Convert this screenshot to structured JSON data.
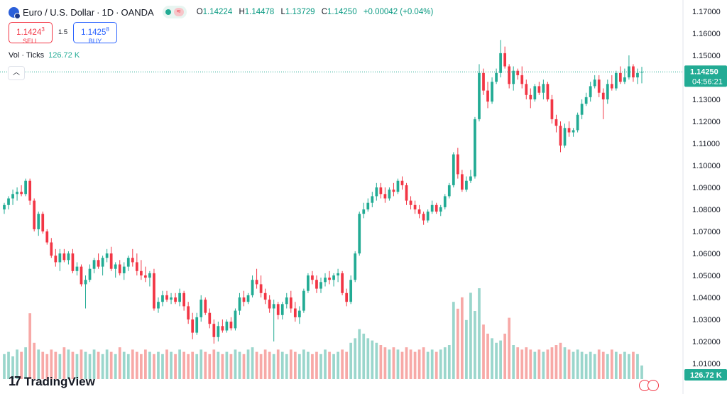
{
  "header": {
    "symbol_name": "Euro / U.S. Dollar",
    "interval": "1D",
    "exchange": "OANDA",
    "ohlc": [
      {
        "k": "O",
        "v": "1.14224"
      },
      {
        "k": "H",
        "v": "1.14478"
      },
      {
        "k": "L",
        "v": "1.13729"
      },
      {
        "k": "C",
        "v": "1.14250"
      }
    ],
    "change": "+0.00042 (+0.04%)"
  },
  "trade": {
    "sell_price": "1.1424",
    "sell_price_small": "3",
    "sell_label": "SELL",
    "spread": "1.5",
    "buy_price": "1.1425",
    "buy_price_small": "8",
    "buy_label": "BUY"
  },
  "volume": {
    "label": "Vol · Ticks",
    "value": "126.72 K"
  },
  "collapse_icon": "chevron-up-icon",
  "logo": {
    "text": "TradingView",
    "icon": "tradingview-logo-icon"
  },
  "colors": {
    "up": "#22ab94",
    "down": "#f23645",
    "vol_up": "#9ad6cc",
    "vol_down": "#f7a9a7",
    "axis_text": "#131722",
    "price_tag": "#22ab94"
  },
  "chart_data": {
    "type": "candlestick",
    "ylim": [
      1.01,
      1.17
    ],
    "y_ticks": [
      "1.17000",
      "1.16000",
      "1.15000",
      "1.14000",
      "1.13000",
      "1.12000",
      "1.11000",
      "1.10000",
      "1.09000",
      "1.08000",
      "1.07000",
      "1.06000",
      "1.05000",
      "1.04000",
      "1.03000",
      "1.02000",
      "1.01000"
    ],
    "last_price": "1.14250",
    "countdown": "04:56:21",
    "volume_last": "126.72 K",
    "candles": [
      {
        "o": 1.08,
        "h": 1.083,
        "l": 1.078,
        "c": 1.082,
        "v": 11
      },
      {
        "o": 1.082,
        "h": 1.086,
        "l": 1.08,
        "c": 1.085,
        "v": 12
      },
      {
        "o": 1.085,
        "h": 1.089,
        "l": 1.082,
        "c": 1.087,
        "v": 10
      },
      {
        "o": 1.087,
        "h": 1.09,
        "l": 1.084,
        "c": 1.088,
        "v": 13
      },
      {
        "o": 1.088,
        "h": 1.091,
        "l": 1.086,
        "c": 1.087,
        "v": 12
      },
      {
        "o": 1.087,
        "h": 1.094,
        "l": 1.086,
        "c": 1.093,
        "v": 14
      },
      {
        "o": 1.093,
        "h": 1.094,
        "l": 1.082,
        "c": 1.084,
        "v": 29
      },
      {
        "o": 1.084,
        "h": 1.085,
        "l": 1.07,
        "c": 1.071,
        "v": 16
      },
      {
        "o": 1.071,
        "h": 1.079,
        "l": 1.068,
        "c": 1.078,
        "v": 13
      },
      {
        "o": 1.078,
        "h": 1.079,
        "l": 1.069,
        "c": 1.07,
        "v": 12
      },
      {
        "o": 1.07,
        "h": 1.071,
        "l": 1.064,
        "c": 1.065,
        "v": 11
      },
      {
        "o": 1.065,
        "h": 1.067,
        "l": 1.058,
        "c": 1.059,
        "v": 13
      },
      {
        "o": 1.059,
        "h": 1.062,
        "l": 1.054,
        "c": 1.056,
        "v": 12
      },
      {
        "o": 1.056,
        "h": 1.062,
        "l": 1.052,
        "c": 1.06,
        "v": 11
      },
      {
        "o": 1.06,
        "h": 1.062,
        "l": 1.056,
        "c": 1.057,
        "v": 14
      },
      {
        "o": 1.057,
        "h": 1.061,
        "l": 1.055,
        "c": 1.06,
        "v": 13
      },
      {
        "o": 1.06,
        "h": 1.062,
        "l": 1.051,
        "c": 1.052,
        "v": 12
      },
      {
        "o": 1.052,
        "h": 1.056,
        "l": 1.05,
        "c": 1.054,
        "v": 11
      },
      {
        "o": 1.054,
        "h": 1.055,
        "l": 1.045,
        "c": 1.046,
        "v": 13
      },
      {
        "o": 1.046,
        "h": 1.05,
        "l": 1.035,
        "c": 1.048,
        "v": 12
      },
      {
        "o": 1.048,
        "h": 1.055,
        "l": 1.047,
        "c": 1.053,
        "v": 11
      },
      {
        "o": 1.053,
        "h": 1.058,
        "l": 1.051,
        "c": 1.057,
        "v": 13
      },
      {
        "o": 1.057,
        "h": 1.06,
        "l": 1.053,
        "c": 1.054,
        "v": 12
      },
      {
        "o": 1.054,
        "h": 1.059,
        "l": 1.05,
        "c": 1.058,
        "v": 11
      },
      {
        "o": 1.058,
        "h": 1.062,
        "l": 1.056,
        "c": 1.06,
        "v": 13
      },
      {
        "o": 1.06,
        "h": 1.063,
        "l": 1.052,
        "c": 1.053,
        "v": 12
      },
      {
        "o": 1.053,
        "h": 1.056,
        "l": 1.049,
        "c": 1.055,
        "v": 11
      },
      {
        "o": 1.055,
        "h": 1.057,
        "l": 1.05,
        "c": 1.051,
        "v": 14
      },
      {
        "o": 1.051,
        "h": 1.056,
        "l": 1.048,
        "c": 1.054,
        "v": 12
      },
      {
        "o": 1.054,
        "h": 1.059,
        "l": 1.052,
        "c": 1.058,
        "v": 11
      },
      {
        "o": 1.058,
        "h": 1.062,
        "l": 1.054,
        "c": 1.056,
        "v": 13
      },
      {
        "o": 1.056,
        "h": 1.06,
        "l": 1.05,
        "c": 1.052,
        "v": 12
      },
      {
        "o": 1.052,
        "h": 1.057,
        "l": 1.048,
        "c": 1.05,
        "v": 11
      },
      {
        "o": 1.05,
        "h": 1.054,
        "l": 1.047,
        "c": 1.049,
        "v": 13
      },
      {
        "o": 1.049,
        "h": 1.052,
        "l": 1.045,
        "c": 1.051,
        "v": 12
      },
      {
        "o": 1.051,
        "h": 1.053,
        "l": 1.034,
        "c": 1.035,
        "v": 11
      },
      {
        "o": 1.035,
        "h": 1.04,
        "l": 1.033,
        "c": 1.038,
        "v": 12
      },
      {
        "o": 1.038,
        "h": 1.043,
        "l": 1.036,
        "c": 1.041,
        "v": 11
      },
      {
        "o": 1.041,
        "h": 1.043,
        "l": 1.038,
        "c": 1.039,
        "v": 13
      },
      {
        "o": 1.039,
        "h": 1.042,
        "l": 1.037,
        "c": 1.04,
        "v": 12
      },
      {
        "o": 1.04,
        "h": 1.042,
        "l": 1.037,
        "c": 1.038,
        "v": 11
      },
      {
        "o": 1.038,
        "h": 1.044,
        "l": 1.036,
        "c": 1.042,
        "v": 13
      },
      {
        "o": 1.042,
        "h": 1.043,
        "l": 1.034,
        "c": 1.036,
        "v": 12
      },
      {
        "o": 1.036,
        "h": 1.038,
        "l": 1.028,
        "c": 1.03,
        "v": 11
      },
      {
        "o": 1.03,
        "h": 1.033,
        "l": 1.021,
        "c": 1.024,
        "v": 12
      },
      {
        "o": 1.024,
        "h": 1.033,
        "l": 1.023,
        "c": 1.031,
        "v": 11
      },
      {
        "o": 1.031,
        "h": 1.041,
        "l": 1.029,
        "c": 1.039,
        "v": 13
      },
      {
        "o": 1.039,
        "h": 1.04,
        "l": 1.032,
        "c": 1.033,
        "v": 12
      },
      {
        "o": 1.033,
        "h": 1.035,
        "l": 1.026,
        "c": 1.028,
        "v": 11
      },
      {
        "o": 1.028,
        "h": 1.03,
        "l": 1.019,
        "c": 1.022,
        "v": 13
      },
      {
        "o": 1.022,
        "h": 1.029,
        "l": 1.02,
        "c": 1.027,
        "v": 12
      },
      {
        "o": 1.027,
        "h": 1.03,
        "l": 1.024,
        "c": 1.025,
        "v": 11
      },
      {
        "o": 1.025,
        "h": 1.03,
        "l": 1.024,
        "c": 1.029,
        "v": 12
      },
      {
        "o": 1.029,
        "h": 1.031,
        "l": 1.025,
        "c": 1.026,
        "v": 11
      },
      {
        "o": 1.026,
        "h": 1.035,
        "l": 1.025,
        "c": 1.034,
        "v": 13
      },
      {
        "o": 1.034,
        "h": 1.042,
        "l": 1.032,
        "c": 1.04,
        "v": 12
      },
      {
        "o": 1.04,
        "h": 1.043,
        "l": 1.036,
        "c": 1.038,
        "v": 11
      },
      {
        "o": 1.038,
        "h": 1.042,
        "l": 1.037,
        "c": 1.041,
        "v": 13
      },
      {
        "o": 1.041,
        "h": 1.05,
        "l": 1.04,
        "c": 1.048,
        "v": 14
      },
      {
        "o": 1.048,
        "h": 1.053,
        "l": 1.044,
        "c": 1.046,
        "v": 12
      },
      {
        "o": 1.046,
        "h": 1.05,
        "l": 1.04,
        "c": 1.042,
        "v": 11
      },
      {
        "o": 1.042,
        "h": 1.044,
        "l": 1.037,
        "c": 1.039,
        "v": 13
      },
      {
        "o": 1.039,
        "h": 1.041,
        "l": 1.033,
        "c": 1.035,
        "v": 12
      },
      {
        "o": 1.035,
        "h": 1.039,
        "l": 1.02,
        "c": 1.037,
        "v": 11
      },
      {
        "o": 1.037,
        "h": 1.038,
        "l": 1.03,
        "c": 1.032,
        "v": 13
      },
      {
        "o": 1.032,
        "h": 1.038,
        "l": 1.03,
        "c": 1.037,
        "v": 12
      },
      {
        "o": 1.037,
        "h": 1.042,
        "l": 1.035,
        "c": 1.04,
        "v": 11
      },
      {
        "o": 1.04,
        "h": 1.043,
        "l": 1.033,
        "c": 1.035,
        "v": 13
      },
      {
        "o": 1.035,
        "h": 1.038,
        "l": 1.029,
        "c": 1.031,
        "v": 12
      },
      {
        "o": 1.031,
        "h": 1.036,
        "l": 1.028,
        "c": 1.034,
        "v": 11
      },
      {
        "o": 1.034,
        "h": 1.044,
        "l": 1.033,
        "c": 1.043,
        "v": 13
      },
      {
        "o": 1.043,
        "h": 1.051,
        "l": 1.042,
        "c": 1.05,
        "v": 12
      },
      {
        "o": 1.05,
        "h": 1.052,
        "l": 1.046,
        "c": 1.048,
        "v": 11
      },
      {
        "o": 1.048,
        "h": 1.05,
        "l": 1.042,
        "c": 1.044,
        "v": 12
      },
      {
        "o": 1.044,
        "h": 1.049,
        "l": 1.042,
        "c": 1.047,
        "v": 11
      },
      {
        "o": 1.047,
        "h": 1.051,
        "l": 1.045,
        "c": 1.049,
        "v": 13
      },
      {
        "o": 1.049,
        "h": 1.052,
        "l": 1.046,
        "c": 1.048,
        "v": 12
      },
      {
        "o": 1.048,
        "h": 1.051,
        "l": 1.045,
        "c": 1.05,
        "v": 11
      },
      {
        "o": 1.05,
        "h": 1.053,
        "l": 1.047,
        "c": 1.051,
        "v": 12
      },
      {
        "o": 1.051,
        "h": 1.052,
        "l": 1.041,
        "c": 1.042,
        "v": 13
      },
      {
        "o": 1.042,
        "h": 1.044,
        "l": 1.036,
        "c": 1.038,
        "v": 12
      },
      {
        "o": 1.038,
        "h": 1.05,
        "l": 1.037,
        "c": 1.048,
        "v": 16
      },
      {
        "o": 1.048,
        "h": 1.061,
        "l": 1.047,
        "c": 1.06,
        "v": 18
      },
      {
        "o": 1.06,
        "h": 1.079,
        "l": 1.059,
        "c": 1.078,
        "v": 22
      },
      {
        "o": 1.078,
        "h": 1.083,
        "l": 1.076,
        "c": 1.08,
        "v": 20
      },
      {
        "o": 1.08,
        "h": 1.085,
        "l": 1.079,
        "c": 1.083,
        "v": 18
      },
      {
        "o": 1.083,
        "h": 1.088,
        "l": 1.081,
        "c": 1.086,
        "v": 17
      },
      {
        "o": 1.086,
        "h": 1.092,
        "l": 1.084,
        "c": 1.09,
        "v": 16
      },
      {
        "o": 1.09,
        "h": 1.092,
        "l": 1.085,
        "c": 1.087,
        "v": 15
      },
      {
        "o": 1.087,
        "h": 1.09,
        "l": 1.083,
        "c": 1.085,
        "v": 14
      },
      {
        "o": 1.085,
        "h": 1.09,
        "l": 1.084,
        "c": 1.089,
        "v": 13
      },
      {
        "o": 1.089,
        "h": 1.092,
        "l": 1.086,
        "c": 1.088,
        "v": 14
      },
      {
        "o": 1.088,
        "h": 1.094,
        "l": 1.087,
        "c": 1.093,
        "v": 13
      },
      {
        "o": 1.093,
        "h": 1.095,
        "l": 1.089,
        "c": 1.091,
        "v": 12
      },
      {
        "o": 1.091,
        "h": 1.092,
        "l": 1.082,
        "c": 1.084,
        "v": 14
      },
      {
        "o": 1.084,
        "h": 1.086,
        "l": 1.08,
        "c": 1.082,
        "v": 13
      },
      {
        "o": 1.082,
        "h": 1.084,
        "l": 1.078,
        "c": 1.08,
        "v": 12
      },
      {
        "o": 1.08,
        "h": 1.082,
        "l": 1.076,
        "c": 1.078,
        "v": 13
      },
      {
        "o": 1.078,
        "h": 1.079,
        "l": 1.073,
        "c": 1.075,
        "v": 14
      },
      {
        "o": 1.075,
        "h": 1.08,
        "l": 1.074,
        "c": 1.079,
        "v": 12
      },
      {
        "o": 1.079,
        "h": 1.084,
        "l": 1.078,
        "c": 1.082,
        "v": 13
      },
      {
        "o": 1.082,
        "h": 1.083,
        "l": 1.078,
        "c": 1.079,
        "v": 12
      },
      {
        "o": 1.079,
        "h": 1.082,
        "l": 1.077,
        "c": 1.081,
        "v": 13
      },
      {
        "o": 1.081,
        "h": 1.087,
        "l": 1.08,
        "c": 1.086,
        "v": 14
      },
      {
        "o": 1.086,
        "h": 1.092,
        "l": 1.085,
        "c": 1.091,
        "v": 15
      },
      {
        "o": 1.091,
        "h": 1.106,
        "l": 1.09,
        "c": 1.105,
        "v": 34
      },
      {
        "o": 1.105,
        "h": 1.108,
        "l": 1.094,
        "c": 1.096,
        "v": 31
      },
      {
        "o": 1.096,
        "h": 1.098,
        "l": 1.088,
        "c": 1.089,
        "v": 36
      },
      {
        "o": 1.089,
        "h": 1.095,
        "l": 1.088,
        "c": 1.093,
        "v": 26
      },
      {
        "o": 1.093,
        "h": 1.098,
        "l": 1.092,
        "c": 1.095,
        "v": 38
      },
      {
        "o": 1.095,
        "h": 1.122,
        "l": 1.094,
        "c": 1.121,
        "v": 30
      },
      {
        "o": 1.121,
        "h": 1.146,
        "l": 1.12,
        "c": 1.142,
        "v": 40
      },
      {
        "o": 1.142,
        "h": 1.144,
        "l": 1.132,
        "c": 1.134,
        "v": 24
      },
      {
        "o": 1.134,
        "h": 1.138,
        "l": 1.126,
        "c": 1.129,
        "v": 20
      },
      {
        "o": 1.129,
        "h": 1.14,
        "l": 1.128,
        "c": 1.138,
        "v": 18
      },
      {
        "o": 1.138,
        "h": 1.144,
        "l": 1.137,
        "c": 1.142,
        "v": 16
      },
      {
        "o": 1.142,
        "h": 1.157,
        "l": 1.14,
        "c": 1.151,
        "v": 17
      },
      {
        "o": 1.151,
        "h": 1.154,
        "l": 1.144,
        "c": 1.145,
        "v": 20
      },
      {
        "o": 1.145,
        "h": 1.146,
        "l": 1.135,
        "c": 1.137,
        "v": 27
      },
      {
        "o": 1.137,
        "h": 1.145,
        "l": 1.134,
        "c": 1.143,
        "v": 15
      },
      {
        "o": 1.143,
        "h": 1.144,
        "l": 1.139,
        "c": 1.141,
        "v": 14
      },
      {
        "o": 1.141,
        "h": 1.145,
        "l": 1.135,
        "c": 1.137,
        "v": 13
      },
      {
        "o": 1.137,
        "h": 1.139,
        "l": 1.13,
        "c": 1.132,
        "v": 14
      },
      {
        "o": 1.132,
        "h": 1.135,
        "l": 1.126,
        "c": 1.13,
        "v": 13
      },
      {
        "o": 1.13,
        "h": 1.137,
        "l": 1.129,
        "c": 1.136,
        "v": 12
      },
      {
        "o": 1.136,
        "h": 1.138,
        "l": 1.132,
        "c": 1.133,
        "v": 13
      },
      {
        "o": 1.133,
        "h": 1.139,
        "l": 1.13,
        "c": 1.137,
        "v": 12
      },
      {
        "o": 1.137,
        "h": 1.138,
        "l": 1.129,
        "c": 1.13,
        "v": 13
      },
      {
        "o": 1.13,
        "h": 1.132,
        "l": 1.119,
        "c": 1.121,
        "v": 14
      },
      {
        "o": 1.121,
        "h": 1.123,
        "l": 1.115,
        "c": 1.118,
        "v": 15
      },
      {
        "o": 1.118,
        "h": 1.12,
        "l": 1.106,
        "c": 1.109,
        "v": 16
      },
      {
        "o": 1.109,
        "h": 1.119,
        "l": 1.108,
        "c": 1.117,
        "v": 14
      },
      {
        "o": 1.117,
        "h": 1.12,
        "l": 1.113,
        "c": 1.115,
        "v": 13
      },
      {
        "o": 1.115,
        "h": 1.117,
        "l": 1.113,
        "c": 1.116,
        "v": 12
      },
      {
        "o": 1.116,
        "h": 1.124,
        "l": 1.115,
        "c": 1.123,
        "v": 13
      },
      {
        "o": 1.123,
        "h": 1.13,
        "l": 1.121,
        "c": 1.128,
        "v": 12
      },
      {
        "o": 1.128,
        "h": 1.133,
        "l": 1.127,
        "c": 1.131,
        "v": 11
      },
      {
        "o": 1.131,
        "h": 1.138,
        "l": 1.129,
        "c": 1.136,
        "v": 12
      },
      {
        "o": 1.136,
        "h": 1.141,
        "l": 1.135,
        "c": 1.139,
        "v": 11
      },
      {
        "o": 1.139,
        "h": 1.141,
        "l": 1.131,
        "c": 1.133,
        "v": 13
      },
      {
        "o": 1.133,
        "h": 1.135,
        "l": 1.121,
        "c": 1.13,
        "v": 12
      },
      {
        "o": 1.13,
        "h": 1.139,
        "l": 1.128,
        "c": 1.137,
        "v": 11
      },
      {
        "o": 1.137,
        "h": 1.141,
        "l": 1.134,
        "c": 1.135,
        "v": 13
      },
      {
        "o": 1.135,
        "h": 1.143,
        "l": 1.134,
        "c": 1.142,
        "v": 12
      },
      {
        "o": 1.142,
        "h": 1.145,
        "l": 1.137,
        "c": 1.138,
        "v": 11
      },
      {
        "o": 1.138,
        "h": 1.144,
        "l": 1.137,
        "c": 1.14,
        "v": 12
      },
      {
        "o": 1.14,
        "h": 1.15,
        "l": 1.139,
        "c": 1.145,
        "v": 11
      },
      {
        "o": 1.145,
        "h": 1.146,
        "l": 1.138,
        "c": 1.14,
        "v": 12
      },
      {
        "o": 1.14,
        "h": 1.144,
        "l": 1.137,
        "c": 1.142,
        "v": 11
      },
      {
        "o": 1.14224,
        "h": 1.14478,
        "l": 1.13729,
        "c": 1.1425,
        "v": 6
      }
    ]
  }
}
